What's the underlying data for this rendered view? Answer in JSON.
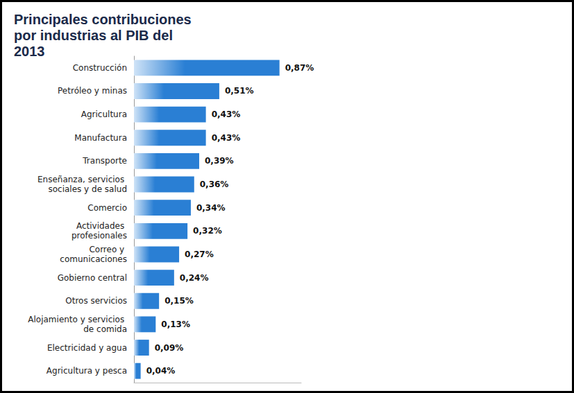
{
  "chart_data": {
    "type": "bar",
    "title": "Principales contribuciones por industrias al PIB del 2013",
    "orientation": "horizontal",
    "categories": [
      "Construcción",
      "Petróleo y minas",
      "Agricultura",
      "Manufactura",
      "Transporte",
      "Enseñanza, servicios sociales y de salud",
      "Comercio",
      "Actividades profesionales",
      "Correo y comunicaciones",
      "Gobierno central",
      "Otros servicios",
      "Alojamiento y servicios de comida",
      "Electricidad y agua",
      "Agricultura y pesca"
    ],
    "values": [
      0.87,
      0.51,
      0.43,
      0.43,
      0.39,
      0.36,
      0.34,
      0.32,
      0.27,
      0.24,
      0.15,
      0.13,
      0.09,
      0.04
    ],
    "value_labels": [
      "0,87%",
      "0,51%",
      "0,43%",
      "0,43%",
      "0,39%",
      "0,36%",
      "0,34%",
      "0,32%",
      "0,27%",
      "0,24%",
      "0,15%",
      "0,13%",
      "0,09%",
      "0,04%"
    ],
    "color": "#2a7fd4",
    "xlim": [
      0,
      1
    ],
    "grid": false,
    "data_labels": true,
    "tick_labels": "y"
  }
}
